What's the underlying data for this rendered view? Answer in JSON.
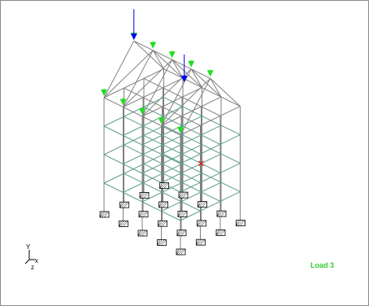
{
  "view": {
    "load_case_label": "Load 3"
  },
  "axis_triad": {
    "x_label": "x",
    "y_label": "Y",
    "z_label": "z"
  },
  "colors": {
    "structure_line": "#808080",
    "slab_line": "#5e9e8c",
    "support_fill": "#ffffff",
    "load_green": "#22dd22",
    "load_blue": "#0000ee",
    "marker_red": "#ff0000",
    "label_green": "#33cc33"
  },
  "icons": {
    "support": "fixed-support-icon",
    "load_arrow": "arrow-down-icon"
  }
}
